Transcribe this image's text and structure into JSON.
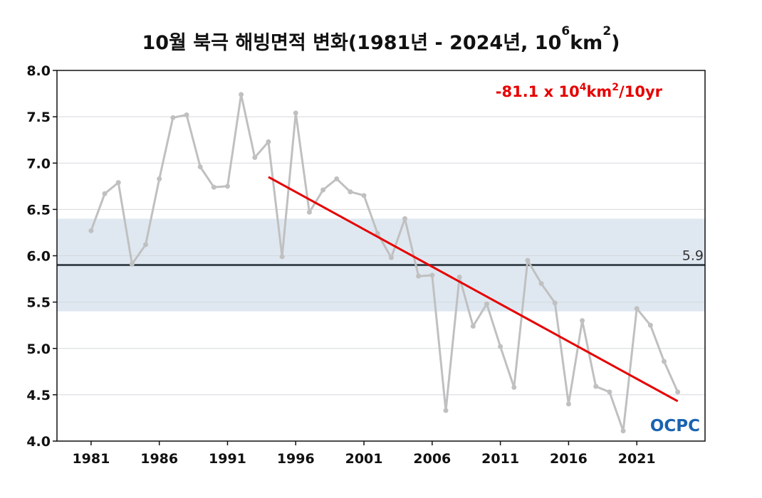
{
  "chart_data": {
    "type": "line",
    "title_main": "10월 북극 해빙면적 변화(1981년 - 2024년, 10",
    "title_sup1": "6",
    "title_mid": "km",
    "title_sup2": "2",
    "title_end": ")",
    "xlim": [
      1978.5,
      2026
    ],
    "ylim": [
      4.0,
      8.0
    ],
    "x_ticks": [
      1981,
      1986,
      1991,
      1996,
      2001,
      2006,
      2011,
      2016,
      2021
    ],
    "y_ticks": [
      "4.0",
      "4.5",
      "5.0",
      "5.5",
      "6.0",
      "6.5",
      "7.0",
      "7.5",
      "8.0"
    ],
    "y_tick_values": [
      4.0,
      4.5,
      5.0,
      5.5,
      6.0,
      6.5,
      7.0,
      7.5,
      8.0
    ],
    "grid": true,
    "series": [
      {
        "color": "#c0c0c0",
        "x": [
          1981,
          1982,
          1983,
          1984,
          1985,
          1986,
          1987,
          1988,
          1989,
          1990,
          1991,
          1992,
          1993,
          1994,
          1995,
          1996,
          1997,
          1998,
          1999,
          2000,
          2001,
          2002,
          2003,
          2004,
          2005,
          2006,
          2007,
          2008,
          2009,
          2010,
          2011,
          2012,
          2013,
          2014,
          2015,
          2016,
          2017,
          2018,
          2019,
          2020,
          2021,
          2022,
          2023,
          2024
        ],
        "values": [
          6.27,
          6.67,
          6.79,
          5.91,
          6.12,
          6.83,
          7.49,
          7.52,
          6.96,
          6.74,
          6.75,
          7.74,
          7.06,
          7.23,
          5.99,
          7.54,
          6.47,
          6.71,
          6.83,
          6.69,
          6.65,
          6.24,
          5.98,
          6.4,
          5.78,
          5.79,
          4.33,
          5.77,
          5.24,
          5.48,
          5.02,
          4.58,
          5.95,
          5.7,
          5.49,
          4.4,
          5.3,
          4.59,
          4.53,
          4.11,
          5.43,
          5.25,
          4.86,
          4.53
        ]
      }
    ],
    "mean": {
      "value": 5.9,
      "label": "5.9",
      "band": [
        5.4,
        6.4
      ],
      "color": "#3f4a52",
      "band_color": "#dfe8f1"
    },
    "trend": {
      "label_main": "-81.1 x 10",
      "label_sup1": "4",
      "label_mid": "km",
      "label_sup2": "2",
      "label_end": "/10yr",
      "x": [
        1994,
        2024
      ],
      "y": [
        6.85,
        4.43
      ],
      "color": "#e60000"
    },
    "logo_text": "OCPC"
  }
}
